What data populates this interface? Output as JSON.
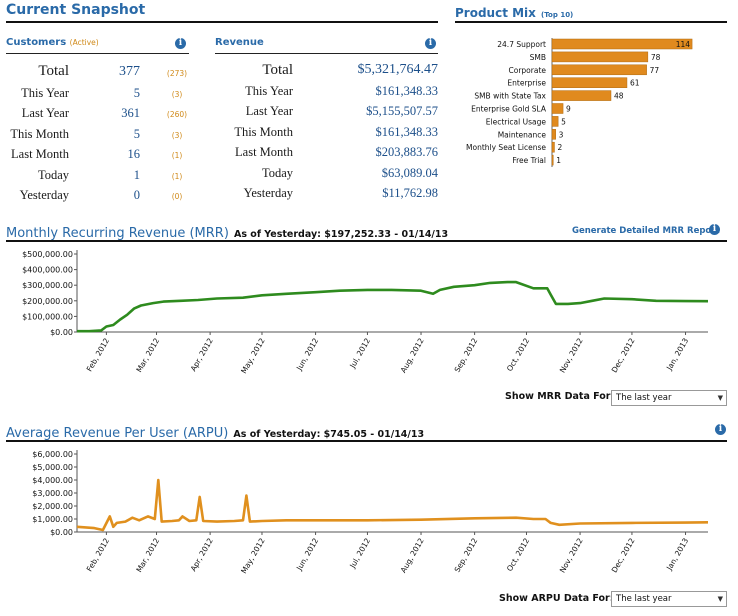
{
  "snapshot": {
    "title": "Current Snapshot",
    "customers": {
      "heading": "Customers",
      "heading_note": "(Active)",
      "rows": [
        {
          "label": "Total",
          "value": "377",
          "paren": "(273)"
        },
        {
          "label": "This Year",
          "value": "5",
          "paren": "(3)"
        },
        {
          "label": "Last Year",
          "value": "361",
          "paren": "(260)"
        },
        {
          "label": "This Month",
          "value": "5",
          "paren": "(3)"
        },
        {
          "label": "Last Month",
          "value": "16",
          "paren": "(1)"
        },
        {
          "label": "Today",
          "value": "1",
          "paren": "(1)"
        },
        {
          "label": "Yesterday",
          "value": "0",
          "paren": "(0)"
        }
      ]
    },
    "revenue": {
      "heading": "Revenue",
      "rows": [
        {
          "label": "Total",
          "value": "$5,321,764.47"
        },
        {
          "label": "This Year",
          "value": "$161,348.33"
        },
        {
          "label": "Last Year",
          "value": "$5,155,507.57"
        },
        {
          "label": "This Month",
          "value": "$161,348.33"
        },
        {
          "label": "Last Month",
          "value": "$203,883.76"
        },
        {
          "label": "Today",
          "value": "$63,089.04"
        },
        {
          "label": "Yesterday",
          "value": "$11,762.98"
        }
      ]
    }
  },
  "product_mix": {
    "title": "Product Mix",
    "title_note": "(Top 10)"
  },
  "mrr": {
    "title": "Monthly Recurring Revenue (MRR)",
    "as_of": "As of Yesterday: $197,252.33 - 01/14/13",
    "report_link": "Generate Detailed MRR Report",
    "show_label": "Show MRR Data For:",
    "select_value": "The last year"
  },
  "arpu": {
    "title": "Average Revenue Per User (ARPU)",
    "as_of": "As of Yesterday: $745.05 - 01/14/13",
    "show_label": "Show ARPU Data For:",
    "select_value": "The last year"
  },
  "colors": {
    "accent_blue": "#2a6aa8",
    "bar_orange": "#e08a1e",
    "mrr_green": "#2e8b1e",
    "arpu_orange": "#e0901e"
  },
  "chart_data": [
    {
      "type": "bar",
      "orientation": "horizontal",
      "categories": [
        "24.7 Support",
        "SMB",
        "Corporate",
        "Enterprise",
        "SMB with State Tax",
        "Enterprise Gold SLA",
        "Electrical Usage",
        "Maintenance",
        "Monthly Seat License",
        "Free Trial"
      ],
      "values": [
        114,
        78,
        77,
        61,
        48,
        9,
        5,
        3,
        2,
        1
      ],
      "data_labels": [
        "114",
        "78",
        "77",
        "61",
        "48",
        "9",
        "5",
        "3",
        "2",
        "1"
      ],
      "xlim": [
        0,
        118
      ]
    },
    {
      "type": "line",
      "x_ticks": [
        "Feb, 2012",
        "Mar, 2012",
        "Apr, 2012",
        "May, 2012",
        "Jun, 2012",
        "Jul, 2012",
        "Aug, 2012",
        "Sep, 2012",
        "Oct, 2012",
        "Nov, 2012",
        "Dec, 2012",
        "Jan, 2013"
      ],
      "y_ticks": [
        "$500,000.00",
        "$400,000.00",
        "$300,000.00",
        "$200,000.00",
        "$100,000.00",
        "$0.00"
      ],
      "ylim": [
        0,
        500000
      ],
      "xlim": [
        "2012-01-15",
        "2013-01-14"
      ],
      "series": [
        {
          "x": [
            "2012-01-15",
            "2012-01-22",
            "2012-01-29",
            "2012-02-01",
            "2012-02-05",
            "2012-02-09",
            "2012-02-13",
            "2012-02-17",
            "2012-02-21",
            "2012-02-28",
            "2012-03-05",
            "2012-03-15",
            "2012-03-25",
            "2012-04-05",
            "2012-04-20",
            "2012-05-01",
            "2012-05-15",
            "2012-06-01",
            "2012-06-15",
            "2012-07-01",
            "2012-07-15",
            "2012-08-01",
            "2012-08-08",
            "2012-08-12",
            "2012-08-20",
            "2012-09-01",
            "2012-09-10",
            "2012-09-20",
            "2012-09-25",
            "2012-10-05",
            "2012-10-13",
            "2012-10-15",
            "2012-10-18",
            "2012-10-25",
            "2012-11-01",
            "2012-11-08",
            "2012-11-15",
            "2012-12-01",
            "2012-12-15",
            "2013-01-01",
            "2013-01-14"
          ],
          "y": [
            5000,
            5000,
            10000,
            35000,
            45000,
            80000,
            110000,
            150000,
            170000,
            185000,
            195000,
            200000,
            205000,
            215000,
            220000,
            235000,
            245000,
            255000,
            265000,
            270000,
            270000,
            265000,
            245000,
            270000,
            290000,
            300000,
            315000,
            320000,
            320000,
            280000,
            280000,
            240000,
            180000,
            180000,
            185000,
            200000,
            215000,
            210000,
            200000,
            198000,
            197252
          ]
        }
      ]
    },
    {
      "type": "line",
      "x_ticks": [
        "Feb, 2012",
        "Mar, 2012",
        "Apr, 2012",
        "May, 2012",
        "Jun, 2012",
        "Jul, 2012",
        "Aug, 2012",
        "Sep, 2012",
        "Oct, 2012",
        "Nov, 2012",
        "Dec, 2012",
        "Jan, 2013"
      ],
      "y_ticks": [
        "$6,000.00",
        "$5,000.00",
        "$4,000.00",
        "$3,000.00",
        "$2,000.00",
        "$1,000.00",
        "$0.00"
      ],
      "ylim": [
        0,
        6000
      ],
      "xlim": [
        "2012-01-15",
        "2013-01-14"
      ],
      "series": [
        {
          "x": [
            "2012-01-15",
            "2012-01-25",
            "2012-01-30",
            "2012-02-03",
            "2012-02-05",
            "2012-02-07",
            "2012-02-12",
            "2012-02-16",
            "2012-02-20",
            "2012-02-25",
            "2012-02-29",
            "2012-03-02",
            "2012-03-04",
            "2012-03-10",
            "2012-03-14",
            "2012-03-16",
            "2012-03-20",
            "2012-03-24",
            "2012-03-26",
            "2012-03-28",
            "2012-04-05",
            "2012-04-15",
            "2012-04-20",
            "2012-04-22",
            "2012-04-24",
            "2012-05-01",
            "2012-05-15",
            "2012-06-01",
            "2012-07-01",
            "2012-08-01",
            "2012-09-01",
            "2012-09-25",
            "2012-10-05",
            "2012-10-12",
            "2012-10-15",
            "2012-10-20",
            "2012-11-01",
            "2012-12-01",
            "2013-01-01",
            "2013-01-14"
          ],
          "y": [
            400,
            300,
            150,
            1200,
            400,
            700,
            800,
            1100,
            900,
            1200,
            1000,
            4000,
            800,
            850,
            900,
            1200,
            850,
            900,
            2700,
            850,
            800,
            850,
            900,
            2800,
            800,
            850,
            900,
            900,
            900,
            950,
            1050,
            1100,
            1000,
            1000,
            700,
            550,
            650,
            700,
            720,
            745
          ]
        }
      ]
    }
  ]
}
